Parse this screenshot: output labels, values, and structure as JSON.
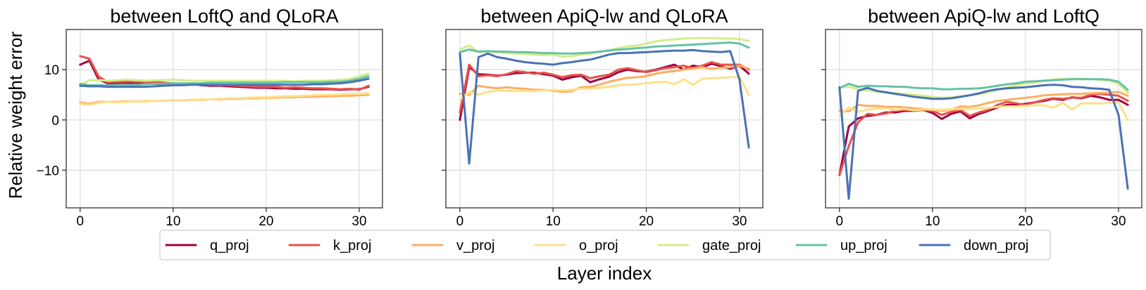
{
  "figure": {
    "ylabel": "Relative weight error",
    "xlabel": "Layer index"
  },
  "legend": {
    "items": [
      {
        "name": "q_proj",
        "color": "#9e0142"
      },
      {
        "name": "k_proj",
        "color": "#e8524a"
      },
      {
        "name": "v_proj",
        "color": "#fdae61"
      },
      {
        "name": "o_proj",
        "color": "#fee08b"
      },
      {
        "name": "gate_proj",
        "color": "#d4ed8b"
      },
      {
        "name": "up_proj",
        "color": "#66c2a5"
      },
      {
        "name": "down_proj",
        "color": "#4a72b4"
      }
    ]
  },
  "chart_data": [
    {
      "type": "line",
      "title": "between LoftQ and QLoRA",
      "xlim": [
        -1.5,
        32.5
      ],
      "ylim": [
        -17.5,
        18
      ],
      "xticks": [
        0,
        10,
        20,
        30
      ],
      "yticks": [
        -10,
        0,
        10
      ],
      "x": [
        0,
        1,
        2,
        3,
        4,
        5,
        6,
        7,
        8,
        9,
        10,
        11,
        12,
        13,
        14,
        15,
        16,
        17,
        18,
        19,
        20,
        21,
        22,
        23,
        24,
        25,
        26,
        27,
        28,
        29,
        30,
        31
      ],
      "series": [
        {
          "name": "q_proj",
          "values": [
            11,
            11.8,
            8,
            7.3,
            7.2,
            7.3,
            7.2,
            7.3,
            7.2,
            7.1,
            7.2,
            7.1,
            7.2,
            6.9,
            6.8,
            6.8,
            6.7,
            6.6,
            6.5,
            6.4,
            6.4,
            6.3,
            6.3,
            6.2,
            6.2,
            6.1,
            6.1,
            6.1,
            6.0,
            6.1,
            6.1,
            6.6
          ]
        },
        {
          "name": "k_proj",
          "values": [
            12.7,
            12.2,
            8.6,
            7.5,
            7.6,
            7.6,
            7.7,
            7.5,
            7.6,
            7.4,
            7.3,
            7.1,
            7.2,
            7.0,
            7.0,
            6.9,
            6.9,
            6.8,
            6.7,
            6.6,
            6.6,
            6.6,
            6.4,
            6.5,
            6.4,
            6.3,
            6.3,
            6.2,
            6.1,
            6.2,
            6.0,
            6.8
          ]
        },
        {
          "name": "v_proj",
          "values": [
            3.5,
            3.2,
            3.6,
            3.6,
            3.6,
            3.7,
            3.7,
            3.7,
            3.8,
            3.8,
            3.9,
            3.9,
            4.0,
            4.0,
            4.1,
            4.1,
            4.2,
            4.2,
            4.3,
            4.3,
            4.4,
            4.4,
            4.5,
            4.5,
            4.6,
            4.6,
            4.7,
            4.7,
            4.8,
            4.8,
            4.9,
            5.0
          ]
        },
        {
          "name": "o_proj",
          "values": [
            3.2,
            3.0,
            3.4,
            3.6,
            3.5,
            3.6,
            3.7,
            3.6,
            3.8,
            3.8,
            3.9,
            3.9,
            4.0,
            4.1,
            4.1,
            4.2,
            4.3,
            4.3,
            4.4,
            4.5,
            4.5,
            4.6,
            4.7,
            4.7,
            4.8,
            4.9,
            5.0,
            5.0,
            5.1,
            5.2,
            5.2,
            5.3
          ]
        },
        {
          "name": "gate_proj",
          "values": [
            7.0,
            7.9,
            7.9,
            7.8,
            7.9,
            8.0,
            7.9,
            7.8,
            7.9,
            7.9,
            8.0,
            7.9,
            7.8,
            7.8,
            7.8,
            7.8,
            7.8,
            7.8,
            7.8,
            7.8,
            7.8,
            7.8,
            7.8,
            7.7,
            7.8,
            7.8,
            7.8,
            7.9,
            8.0,
            8.1,
            8.7,
            9.2
          ]
        },
        {
          "name": "up_proj",
          "values": [
            7.2,
            6.9,
            6.9,
            6.9,
            7.0,
            7.0,
            7.0,
            7.1,
            7.2,
            7.2,
            7.3,
            7.3,
            7.3,
            7.3,
            7.4,
            7.4,
            7.4,
            7.4,
            7.4,
            7.4,
            7.4,
            7.4,
            7.5,
            7.5,
            7.5,
            7.5,
            7.5,
            7.6,
            7.6,
            7.8,
            8.2,
            8.7
          ]
        },
        {
          "name": "down_proj",
          "values": [
            6.8,
            6.7,
            6.7,
            6.6,
            6.6,
            6.6,
            6.6,
            6.6,
            6.7,
            6.8,
            6.9,
            6.9,
            7.0,
            7.0,
            7.0,
            7.0,
            7.0,
            7.0,
            7.0,
            7.0,
            7.0,
            7.0,
            7.0,
            7.0,
            7.0,
            7.1,
            7.1,
            7.2,
            7.3,
            7.5,
            7.8,
            8.2
          ]
        }
      ]
    },
    {
      "type": "line",
      "title": "between ApiQ-lw and QLoRA",
      "xlim": [
        -1.5,
        32.5
      ],
      "ylim": [
        -17.5,
        18
      ],
      "xticks": [
        0,
        10,
        20,
        30
      ],
      "yticks": [
        -10,
        0,
        10
      ],
      "x": [
        0,
        1,
        2,
        3,
        4,
        5,
        6,
        7,
        8,
        9,
        10,
        11,
        12,
        13,
        14,
        15,
        16,
        17,
        18,
        19,
        20,
        21,
        22,
        23,
        24,
        25,
        26,
        27,
        28,
        29,
        30,
        31
      ],
      "series": [
        {
          "name": "q_proj",
          "values": [
            0,
            10.5,
            9.1,
            9.0,
            8.8,
            9.0,
            9.3,
            9.4,
            9.4,
            9.1,
            8.8,
            8.0,
            8.5,
            8.8,
            7.5,
            8.1,
            8.6,
            9.5,
            10.0,
            9.7,
            9.6,
            10.0,
            10.5,
            11.0,
            10.0,
            10.8,
            10.5,
            11.2,
            10.7,
            10.2,
            10.8,
            9.2
          ]
        },
        {
          "name": "k_proj",
          "values": [
            1.5,
            11.0,
            8.7,
            8.9,
            8.7,
            9.1,
            9.7,
            9.5,
            9.2,
            9.4,
            9.0,
            8.5,
            8.9,
            9.0,
            8.3,
            8.7,
            9.0,
            10.0,
            10.3,
            9.9,
            9.5,
            9.9,
            10.3,
            10.5,
            10.8,
            10.3,
            10.8,
            11.5,
            11.0,
            11.0,
            11.0,
            10.0
          ]
        },
        {
          "name": "v_proj",
          "values": [
            5.2,
            5.0,
            6.8,
            6.5,
            6.3,
            6.5,
            6.3,
            6.2,
            6.0,
            6.0,
            5.8,
            5.6,
            5.7,
            6.5,
            6.6,
            7.0,
            7.6,
            8.0,
            8.4,
            8.5,
            8.7,
            9.2,
            9.5,
            9.7,
            10.0,
            10.2,
            10.5,
            10.2,
            10.4,
            10.5,
            10.8,
            10.2
          ]
        },
        {
          "name": "o_proj",
          "values": [
            4.0,
            5.5,
            5.0,
            5.6,
            5.8,
            5.8,
            5.7,
            5.8,
            5.7,
            5.9,
            6.0,
            5.9,
            6.0,
            6.2,
            6.2,
            6.4,
            6.6,
            6.9,
            7.0,
            7.1,
            7.3,
            7.5,
            7.6,
            7.1,
            8.1,
            7.0,
            8.2,
            8.3,
            8.4,
            8.5,
            8.6,
            5.0
          ]
        },
        {
          "name": "gate_proj",
          "values": [
            14.0,
            14.8,
            13.5,
            13.6,
            13.5,
            13.3,
            13.2,
            13.1,
            13.0,
            12.9,
            13.0,
            12.6,
            12.7,
            13.0,
            13.2,
            13.5,
            13.9,
            14.3,
            14.6,
            14.8,
            15.2,
            15.6,
            15.9,
            16.0,
            16.2,
            16.3,
            16.3,
            16.3,
            16.2,
            16.2,
            16.1,
            15.7
          ]
        },
        {
          "name": "up_proj",
          "values": [
            13.5,
            14.0,
            13.6,
            13.7,
            13.6,
            13.6,
            13.5,
            13.5,
            13.4,
            13.3,
            13.3,
            13.2,
            13.2,
            13.3,
            13.4,
            13.6,
            13.8,
            14.0,
            14.1,
            14.3,
            14.4,
            14.6,
            14.7,
            14.8,
            14.9,
            15.0,
            15.1,
            15.2,
            15.3,
            15.4,
            15.2,
            14.4
          ]
        },
        {
          "name": "down_proj",
          "values": [
            13.2,
            -8.7,
            12.5,
            13.2,
            12.5,
            12.2,
            11.8,
            11.5,
            11.3,
            11.2,
            11.0,
            11.3,
            11.5,
            11.8,
            12.0,
            12.5,
            13.0,
            13.3,
            13.3,
            13.4,
            13.5,
            13.6,
            13.7,
            13.8,
            13.8,
            13.9,
            13.7,
            13.6,
            13.5,
            13.7,
            8.0,
            -5.5
          ]
        }
      ]
    },
    {
      "type": "line",
      "title": "between ApiQ-lw and LoftQ",
      "xlim": [
        -1.5,
        32.5
      ],
      "ylim": [
        -17.5,
        18
      ],
      "xticks": [
        0,
        10,
        20,
        30
      ],
      "yticks": [
        -10,
        0,
        10
      ],
      "x": [
        0,
        1,
        2,
        3,
        4,
        5,
        6,
        7,
        8,
        9,
        10,
        11,
        12,
        13,
        14,
        15,
        16,
        17,
        18,
        19,
        20,
        21,
        22,
        23,
        24,
        25,
        26,
        27,
        28,
        29,
        30,
        31
      ],
      "series": [
        {
          "name": "q_proj",
          "values": [
            -11,
            -1.3,
            0.3,
            0.8,
            1.0,
            1.5,
            1.5,
            1.8,
            1.8,
            2.0,
            1.4,
            0.2,
            1.2,
            1.7,
            0.3,
            1.2,
            1.8,
            2.5,
            3.0,
            3.0,
            3.2,
            3.5,
            3.8,
            4.2,
            4.0,
            4.5,
            4.3,
            4.8,
            4.5,
            4.0,
            4.0,
            3.0
          ]
        },
        {
          "name": "k_proj",
          "values": [
            -11,
            -5.2,
            -0.5,
            1.2,
            1.0,
            1.3,
            1.8,
            2.0,
            1.9,
            2.0,
            1.8,
            1.0,
            1.6,
            2.0,
            0.8,
            1.5,
            2.0,
            3.0,
            3.6,
            3.3,
            3.0,
            3.5,
            4.0,
            4.3,
            4.2,
            4.4,
            4.4,
            5.0,
            5.2,
            5.0,
            4.8,
            3.8
          ]
        },
        {
          "name": "v_proj",
          "values": [
            1.8,
            1.7,
            3.0,
            2.8,
            2.8,
            2.6,
            2.6,
            2.5,
            2.3,
            2.2,
            2.0,
            1.8,
            2.0,
            2.7,
            2.6,
            2.9,
            3.4,
            3.8,
            4.0,
            4.2,
            4.4,
            4.6,
            4.9,
            5.0,
            5.1,
            5.2,
            5.2,
            5.3,
            5.4,
            5.4,
            5.6,
            4.8
          ]
        },
        {
          "name": "o_proj",
          "values": [
            0.8,
            2.5,
            1.6,
            2.0,
            2.3,
            2.3,
            2.0,
            2.2,
            1.9,
            2.1,
            2.1,
            2.0,
            2.1,
            2.2,
            2.1,
            2.3,
            2.4,
            2.6,
            2.7,
            2.7,
            2.8,
            2.9,
            2.9,
            2.4,
            3.4,
            2.1,
            3.3,
            3.3,
            3.3,
            3.4,
            3.5,
            0.0
          ]
        },
        {
          "name": "gate_proj",
          "values": [
            6.5,
            6.6,
            6.1,
            5.9,
            5.6,
            5.4,
            5.3,
            5.2,
            5.0,
            4.8,
            4.6,
            4.4,
            4.5,
            4.7,
            4.9,
            5.1,
            5.5,
            6.0,
            6.5,
            6.9,
            7.2,
            7.5,
            7.8,
            8.0,
            8.2,
            8.2,
            8.2,
            8.1,
            8.0,
            7.8,
            7.2,
            5.4
          ]
        },
        {
          "name": "up_proj",
          "values": [
            6.3,
            7.2,
            6.6,
            6.8,
            6.7,
            6.7,
            6.6,
            6.6,
            6.4,
            6.3,
            6.3,
            6.1,
            6.1,
            6.2,
            6.2,
            6.3,
            6.5,
            6.8,
            7.1,
            7.3,
            7.6,
            7.7,
            7.8,
            7.9,
            8.0,
            8.1,
            8.1,
            8.1,
            8.1,
            8.0,
            7.6,
            6.0
          ]
        },
        {
          "name": "down_proj",
          "values": [
            6.5,
            -15.7,
            5.8,
            6.4,
            5.8,
            5.5,
            5.2,
            4.9,
            4.6,
            4.4,
            4.2,
            4.2,
            4.3,
            4.6,
            4.9,
            5.3,
            5.8,
            6.1,
            6.3,
            6.4,
            6.5,
            6.7,
            6.9,
            7.0,
            6.9,
            6.6,
            6.5,
            6.3,
            6.2,
            6.0,
            1.0,
            -13.7
          ]
        }
      ]
    }
  ]
}
